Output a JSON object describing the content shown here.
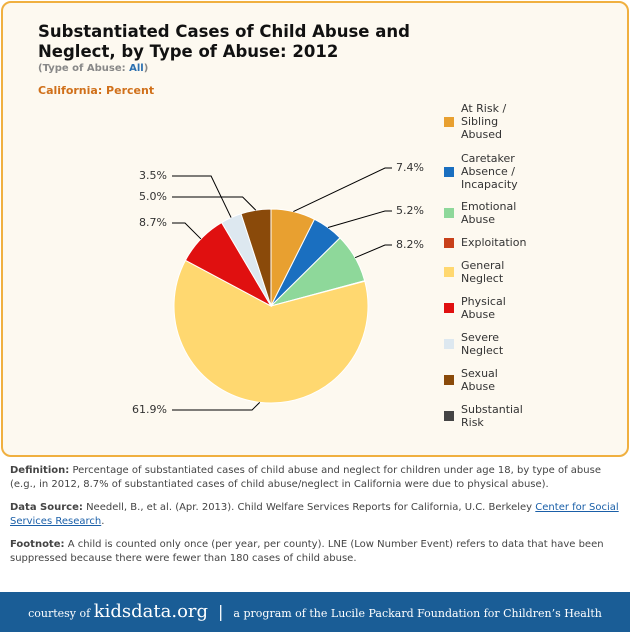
{
  "chart_data": {
    "type": "pie",
    "title": "Substantiated Cases of Child Abuse and Neglect, by Type of Abuse: 2012",
    "subtitle_prefix": "(Type of Abuse:",
    "subtitle_value": "All",
    "subtitle_suffix": ")",
    "region_label": "California: Percent",
    "categories": [
      "At Risk / Sibling Abused",
      "Caretaker Absence / Incapacity",
      "Emotional Abuse",
      "Exploitation",
      "General Neglect",
      "Physical Abuse",
      "Severe Neglect",
      "Sexual Abuse",
      "Substantial Risk"
    ],
    "values": [
      7.4,
      5.2,
      8.2,
      0.1,
      61.9,
      8.7,
      3.5,
      5.0,
      0
    ],
    "value_labels": [
      "7.4%",
      "5.2%",
      "8.2%",
      null,
      "61.9%",
      "8.7%",
      "3.5%",
      "5.0%",
      null
    ],
    "colors": [
      "#e8a030",
      "#1a6fc0",
      "#8ed89a",
      "#c8401a",
      "#ffd870",
      "#e01010",
      "#dde8f0",
      "#8a4a0a",
      "#444444"
    ]
  },
  "notes": [
    {
      "label": "Definition:",
      "text": "Percentage of substantiated cases of child abuse and neglect for children under age 18, by type of abuse (e.g., in 2012, 8.7% of substantiated cases of child abuse/neglect in California were due to physical abuse)."
    },
    {
      "label": "Data Source:",
      "text": "Needell, B., et al. (Apr. 2013). Child Welfare Services Reports for California, U.C. Berkeley",
      "link": "Center for Social Services Research",
      "after": "."
    },
    {
      "label": "Footnote:",
      "text": "A child is counted only once (per year, per county). LNE (Low Number Event) refers to data that have been suppressed because there were fewer than 180 cases of child abuse."
    }
  ],
  "footer": {
    "courtesy": "courtesy of",
    "site": "kidsdata.org",
    "separator": "|",
    "program": "a program of the Lucile Packard Foundation for Children’s Health"
  }
}
